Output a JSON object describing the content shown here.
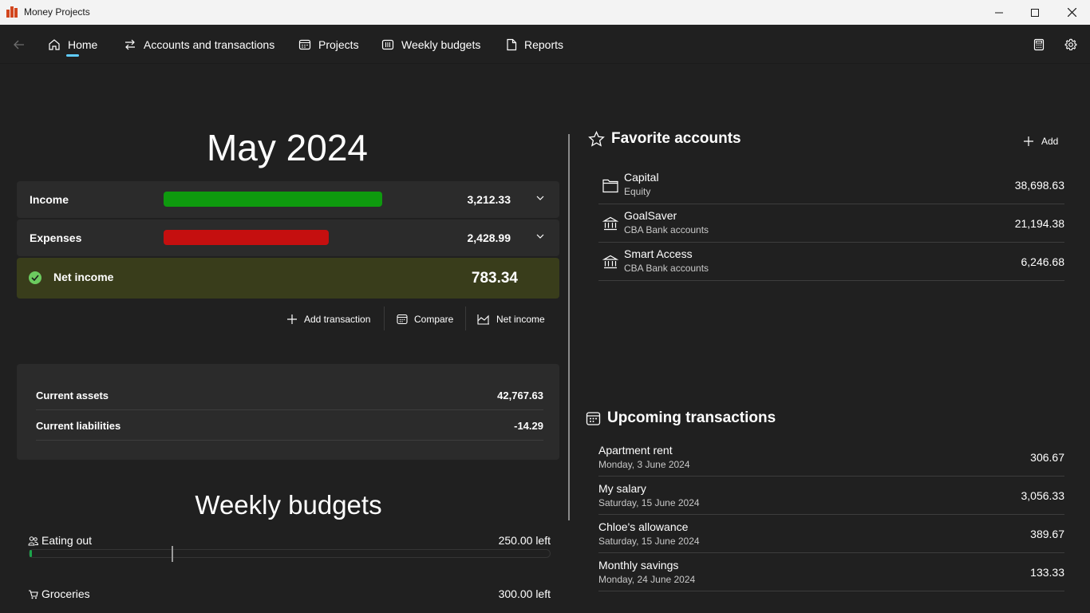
{
  "window": {
    "title": "Money Projects"
  },
  "nav": {
    "items": [
      {
        "label": "Home",
        "icon": "home-icon",
        "selected": true
      },
      {
        "label": "Accounts and transactions",
        "icon": "transfer-icon"
      },
      {
        "label": "Projects",
        "icon": "calendar-grid-icon"
      },
      {
        "label": "Weekly budgets",
        "icon": "columns-icon"
      },
      {
        "label": "Reports",
        "icon": "document-icon"
      }
    ],
    "accent": "#60cdff"
  },
  "summary": {
    "month": "May 2024",
    "income": {
      "label": "Income",
      "value": "3,212.33",
      "bar_fraction": 1.0,
      "color": "#0e9a0e"
    },
    "expenses": {
      "label": "Expenses",
      "value": "2,428.99",
      "bar_fraction": 0.756,
      "color": "#c50f0f"
    },
    "net": {
      "label": "Net income",
      "value": "783.34",
      "status": "positive"
    }
  },
  "commands": {
    "add_transaction": "Add transaction",
    "compare": "Compare",
    "net_income": "Net income"
  },
  "assets": [
    {
      "label": "Current assets",
      "value": "42,767.63"
    },
    {
      "label": "Current liabilities",
      "value": "-14.29"
    }
  ],
  "weekly_budgets": {
    "title": "Weekly budgets",
    "items": [
      {
        "name": "Eating out",
        "icon": "people-icon",
        "left": "250.00 left"
      },
      {
        "name": "Groceries",
        "icon": "cart-icon",
        "left": "300.00 left"
      }
    ]
  },
  "favorites": {
    "title": "Favorite accounts",
    "add_label": "Add",
    "accounts": [
      {
        "name": "Capital",
        "type": "Equity",
        "value": "38,698.63",
        "icon": "folder-icon"
      },
      {
        "name": "GoalSaver",
        "type": "CBA Bank accounts",
        "value": "21,194.38",
        "icon": "bank-icon"
      },
      {
        "name": "Smart Access",
        "type": "CBA Bank accounts",
        "value": "6,246.68",
        "icon": "bank-icon"
      }
    ]
  },
  "upcoming": {
    "title": "Upcoming transactions",
    "items": [
      {
        "name": "Apartment rent",
        "date": "Monday, 3 June 2024",
        "value": "306.67"
      },
      {
        "name": "My salary",
        "date": "Saturday, 15 June 2024",
        "value": "3,056.33"
      },
      {
        "name": "Chloe's allowance",
        "date": "Saturday, 15 June 2024",
        "value": "389.67"
      },
      {
        "name": "Monthly savings",
        "date": "Monday, 24 June 2024",
        "value": "133.33"
      }
    ]
  }
}
